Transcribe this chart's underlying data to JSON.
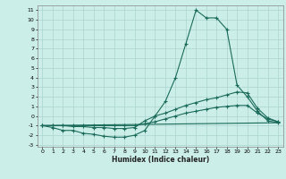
{
  "xlabel": "Humidex (Indice chaleur)",
  "bg_color": "#cceee8",
  "grid_color": "#aad4ce",
  "line_color": "#1a6b5a",
  "xlim": [
    -0.5,
    23.5
  ],
  "ylim": [
    -3.2,
    11.5
  ],
  "xticks": [
    0,
    1,
    2,
    3,
    4,
    5,
    6,
    7,
    8,
    9,
    10,
    11,
    12,
    13,
    14,
    15,
    16,
    17,
    18,
    19,
    20,
    21,
    22,
    23
  ],
  "yticks": [
    -3,
    -2,
    -1,
    0,
    1,
    2,
    3,
    4,
    5,
    6,
    7,
    8,
    9,
    10,
    11
  ],
  "line1_x": [
    0,
    1,
    2,
    3,
    4,
    5,
    6,
    7,
    8,
    9,
    10,
    11,
    12,
    13,
    14,
    15,
    16,
    17,
    18,
    19,
    20,
    21,
    22,
    23
  ],
  "line1_y": [
    -1,
    -1.2,
    -1.5,
    -1.5,
    -1.8,
    -1.9,
    -2.1,
    -2.2,
    -2.2,
    -2.0,
    -1.5,
    0.0,
    1.5,
    4.0,
    7.5,
    11.0,
    10.2,
    10.2,
    9.0,
    3.2,
    2.0,
    0.5,
    -0.5,
    -0.7
  ],
  "line2_x": [
    0,
    1,
    2,
    3,
    4,
    5,
    6,
    7,
    8,
    9,
    10,
    11,
    12,
    13,
    14,
    15,
    16,
    17,
    18,
    19,
    20,
    21,
    22,
    23
  ],
  "line2_y": [
    -1,
    -1.0,
    -1.0,
    -1.1,
    -1.1,
    -1.2,
    -1.2,
    -1.3,
    -1.3,
    -1.2,
    -0.5,
    0.0,
    0.3,
    0.7,
    1.1,
    1.4,
    1.7,
    1.9,
    2.2,
    2.5,
    2.4,
    0.8,
    -0.2,
    -0.6
  ],
  "line3_x": [
    0,
    1,
    2,
    3,
    4,
    5,
    6,
    7,
    8,
    9,
    10,
    11,
    12,
    13,
    14,
    15,
    16,
    17,
    18,
    19,
    20,
    21,
    22,
    23
  ],
  "line3_y": [
    -1,
    -1.0,
    -1.0,
    -1.0,
    -1.0,
    -1.0,
    -1.0,
    -1.0,
    -1.0,
    -1.0,
    -0.8,
    -0.6,
    -0.3,
    0.0,
    0.3,
    0.5,
    0.7,
    0.9,
    1.0,
    1.1,
    1.1,
    0.3,
    -0.3,
    -0.6
  ],
  "line4_x": [
    0,
    23
  ],
  "line4_y": [
    -1,
    -0.7
  ]
}
